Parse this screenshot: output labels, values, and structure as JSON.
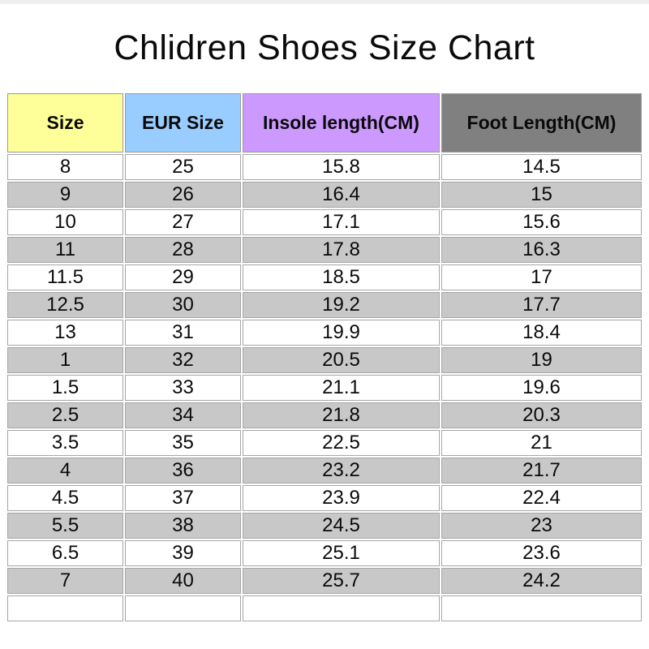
{
  "page": {
    "title": "Chlidren Shoes Size Chart"
  },
  "table": {
    "columns": [
      {
        "label": "Size",
        "header_color": "#ffff99"
      },
      {
        "label": "EUR Size",
        "header_color": "#99ccff"
      },
      {
        "label": "Insole length(CM)",
        "header_color": "#cc99ff"
      },
      {
        "label": "Foot Length(CM)",
        "header_color": "#808080"
      }
    ],
    "stripe_color": "#c8c8c8",
    "row_color": "#ffffff",
    "border_color": "#9a9a9a",
    "rows": [
      [
        "8",
        "25",
        "15.8",
        "14.5"
      ],
      [
        "9",
        "26",
        "16.4",
        "15"
      ],
      [
        "10",
        "27",
        "17.1",
        "15.6"
      ],
      [
        "11",
        "28",
        "17.8",
        "16.3"
      ],
      [
        "11.5",
        "29",
        "18.5",
        "17"
      ],
      [
        "12.5",
        "30",
        "19.2",
        "17.7"
      ],
      [
        "13",
        "31",
        "19.9",
        "18.4"
      ],
      [
        "1",
        "32",
        "20.5",
        "19"
      ],
      [
        "1.5",
        "33",
        "21.1",
        "19.6"
      ],
      [
        "2.5",
        "34",
        "21.8",
        "20.3"
      ],
      [
        "3.5",
        "35",
        "22.5",
        "21"
      ],
      [
        "4",
        "36",
        "23.2",
        "21.7"
      ],
      [
        "4.5",
        "37",
        "23.9",
        "22.4"
      ],
      [
        "5.5",
        "38",
        "24.5",
        "23"
      ],
      [
        "6.5",
        "39",
        "25.1",
        "23.6"
      ],
      [
        "7",
        "40",
        "25.7",
        "24.2"
      ],
      [
        "",
        "",
        "",
        ""
      ]
    ]
  },
  "chart_data": {
    "type": "table",
    "title": "Chlidren Shoes Size Chart",
    "columns": [
      "Size",
      "EUR Size",
      "Insole length(CM)",
      "Foot Length(CM)"
    ],
    "rows": [
      [
        "8",
        "25",
        "15.8",
        "14.5"
      ],
      [
        "9",
        "26",
        "16.4",
        "15"
      ],
      [
        "10",
        "27",
        "17.1",
        "15.6"
      ],
      [
        "11",
        "28",
        "17.8",
        "16.3"
      ],
      [
        "11.5",
        "29",
        "18.5",
        "17"
      ],
      [
        "12.5",
        "30",
        "19.2",
        "17.7"
      ],
      [
        "13",
        "31",
        "19.9",
        "18.4"
      ],
      [
        "1",
        "32",
        "20.5",
        "19"
      ],
      [
        "1.5",
        "33",
        "21.1",
        "19.6"
      ],
      [
        "2.5",
        "34",
        "21.8",
        "20.3"
      ],
      [
        "3.5",
        "35",
        "22.5",
        "21"
      ],
      [
        "4",
        "36",
        "23.2",
        "21.7"
      ],
      [
        "4.5",
        "37",
        "23.9",
        "22.4"
      ],
      [
        "5.5",
        "38",
        "24.5",
        "23"
      ],
      [
        "6.5",
        "39",
        "25.1",
        "23.6"
      ],
      [
        "7",
        "40",
        "25.7",
        "24.2"
      ],
      [
        "",
        "",
        "",
        ""
      ]
    ],
    "layout_hints": {
      "header_colors": [
        "#ffff99",
        "#99ccff",
        "#cc99ff",
        "#808080"
      ],
      "row_striping": "alternating white / #c8c8c8 starting with white",
      "alignment": "center"
    }
  }
}
